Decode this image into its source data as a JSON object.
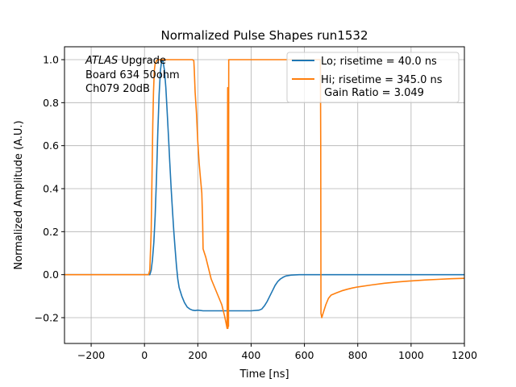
{
  "chart_data": {
    "type": "line",
    "title": "Normalized Pulse Shapes run1532",
    "xlabel": "Time [ns]",
    "ylabel": "Normalized Amplitude (A.U.)",
    "xlim": [
      -300,
      1200
    ],
    "ylim": [
      -0.32,
      1.06
    ],
    "xticks": [
      -200,
      0,
      200,
      400,
      600,
      800,
      1000,
      1200
    ],
    "yticks": [
      -0.2,
      0.0,
      0.2,
      0.4,
      0.6,
      0.8,
      1.0
    ],
    "grid": true,
    "legend_position": "upper-right",
    "annotation": {
      "italic": "ATLAS",
      "rest": " Upgrade",
      "lines": [
        "Board 634 50ohm",
        "Ch079 20dB"
      ]
    },
    "series": [
      {
        "name": "Lo; risetime = 40.0 ns",
        "color": "#1f77b4",
        "x": [
          -300,
          20,
          25,
          30,
          35,
          40,
          45,
          50,
          55,
          60,
          65,
          70,
          75,
          80,
          85,
          90,
          95,
          100,
          105,
          110,
          115,
          120,
          125,
          130,
          140,
          150,
          160,
          170,
          180,
          190,
          200,
          220,
          240,
          260,
          300,
          350,
          400,
          430,
          440,
          450,
          460,
          470,
          480,
          490,
          500,
          510,
          520,
          530,
          550,
          580,
          600,
          650,
          700,
          800,
          1000,
          1200
        ],
        "y": [
          0.0,
          0.0,
          0.02,
          0.07,
          0.15,
          0.27,
          0.45,
          0.66,
          0.84,
          0.95,
          1.0,
          0.99,
          0.95,
          0.87,
          0.76,
          0.64,
          0.52,
          0.4,
          0.3,
          0.2,
          0.12,
          0.04,
          -0.02,
          -0.06,
          -0.1,
          -0.13,
          -0.15,
          -0.16,
          -0.165,
          -0.167,
          -0.165,
          -0.168,
          -0.168,
          -0.168,
          -0.168,
          -0.168,
          -0.168,
          -0.165,
          -0.16,
          -0.145,
          -0.125,
          -0.1,
          -0.075,
          -0.05,
          -0.032,
          -0.02,
          -0.012,
          -0.006,
          -0.002,
          0.0,
          0.0,
          0.0,
          0.0,
          0.0,
          0.0,
          0.0
        ]
      },
      {
        "name": "Hi; risetime = 345.0 ns",
        "sub": " Gain Ratio = 3.049",
        "color": "#ff7f0e",
        "x": [
          -300,
          15,
          20,
          25,
          28,
          31,
          34,
          37,
          40,
          45,
          50,
          55,
          60,
          180,
          185,
          187,
          190,
          195,
          200,
          205,
          210,
          215,
          218,
          220,
          225,
          230,
          240,
          250,
          260,
          270,
          280,
          290,
          300,
          305,
          310,
          312,
          313,
          314,
          315,
          316,
          317,
          318,
          320,
          322,
          325,
          660,
          661,
          662,
          665,
          670,
          680,
          690,
          700,
          720,
          740,
          760,
          780,
          800,
          850,
          900,
          950,
          1000,
          1050,
          1100,
          1150,
          1200
        ],
        "y": [
          0.0,
          0.0,
          0.02,
          0.2,
          0.45,
          0.7,
          0.85,
          0.95,
          0.98,
          0.995,
          1.0,
          1.0,
          1.0,
          1.0,
          0.995,
          0.95,
          0.85,
          0.75,
          0.62,
          0.52,
          0.45,
          0.38,
          0.25,
          0.12,
          0.1,
          0.08,
          0.03,
          -0.02,
          -0.05,
          -0.08,
          -0.11,
          -0.14,
          -0.19,
          -0.22,
          -0.25,
          0.87,
          -0.25,
          0.85,
          -0.24,
          1.0,
          1.0,
          1.0,
          1.0,
          1.0,
          1.0,
          1.0,
          0.6,
          -0.18,
          -0.2,
          -0.18,
          -0.14,
          -0.11,
          -0.095,
          -0.085,
          -0.075,
          -0.068,
          -0.062,
          -0.057,
          -0.048,
          -0.04,
          -0.034,
          -0.029,
          -0.025,
          -0.022,
          -0.019,
          -0.017
        ]
      }
    ]
  }
}
